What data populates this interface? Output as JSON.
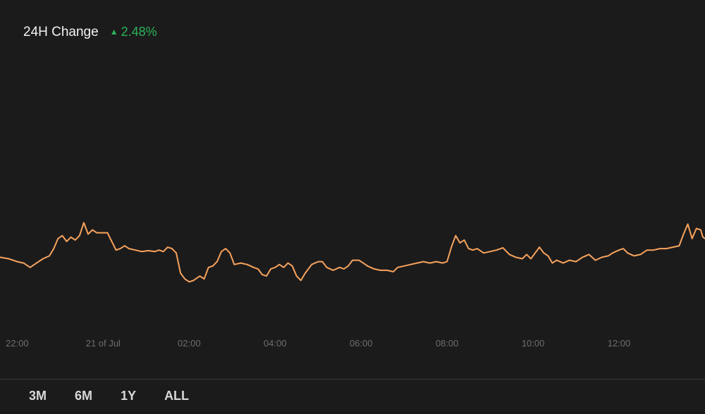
{
  "header": {
    "title": "24H Change",
    "change_icon": "triangle-up-icon",
    "change_value": "2.48%",
    "change_color": "#29b35a"
  },
  "range_buttons": [
    "3M",
    "6M",
    "1Y",
    "ALL"
  ],
  "chart_data": {
    "type": "line",
    "line_color": "#f7a35c",
    "background": "#1c1b1c",
    "tick_color": "#6e6e6e",
    "grid": false,
    "x_ticks": [
      "22:00",
      "21 of Jul",
      "02:00",
      "04:00",
      "06:00",
      "08:00",
      "10:00",
      "12:00"
    ],
    "x_tick_hours": [
      22,
      24,
      26,
      28,
      30,
      32,
      34,
      36
    ],
    "x_range": [
      21.6,
      38.0
    ],
    "y_range": [
      0,
      100
    ],
    "series": [
      {
        "points": [
          [
            21.6,
            25.5
          ],
          [
            21.8,
            25.0
          ],
          [
            22.0,
            24.0
          ],
          [
            22.15,
            23.5
          ],
          [
            22.3,
            22.0
          ],
          [
            22.45,
            23.5
          ],
          [
            22.6,
            25.0
          ],
          [
            22.75,
            26.0
          ],
          [
            22.85,
            28.5
          ],
          [
            22.95,
            32.0
          ],
          [
            23.05,
            33.0
          ],
          [
            23.15,
            31.0
          ],
          [
            23.25,
            32.5
          ],
          [
            23.35,
            31.5
          ],
          [
            23.45,
            33.0
          ],
          [
            23.55,
            37.5
          ],
          [
            23.65,
            33.5
          ],
          [
            23.75,
            35.0
          ],
          [
            23.85,
            34.0
          ],
          [
            24.0,
            34.0
          ],
          [
            24.1,
            34.0
          ],
          [
            24.2,
            31.0
          ],
          [
            24.3,
            28.0
          ],
          [
            24.4,
            28.5
          ],
          [
            24.5,
            29.5
          ],
          [
            24.6,
            28.5
          ],
          [
            24.75,
            28.0
          ],
          [
            24.9,
            27.5
          ],
          [
            25.05,
            27.8
          ],
          [
            25.2,
            27.5
          ],
          [
            25.3,
            28.0
          ],
          [
            25.4,
            27.5
          ],
          [
            25.5,
            29.0
          ],
          [
            25.6,
            28.5
          ],
          [
            25.7,
            27.0
          ],
          [
            25.8,
            20.0
          ],
          [
            25.9,
            18.0
          ],
          [
            26.0,
            17.0
          ],
          [
            26.1,
            17.5
          ],
          [
            26.25,
            19.0
          ],
          [
            26.35,
            18.0
          ],
          [
            26.45,
            22.0
          ],
          [
            26.55,
            22.5
          ],
          [
            26.65,
            24.0
          ],
          [
            26.75,
            27.5
          ],
          [
            26.85,
            28.5
          ],
          [
            26.95,
            27.0
          ],
          [
            27.05,
            23.0
          ],
          [
            27.2,
            23.5
          ],
          [
            27.35,
            23.0
          ],
          [
            27.5,
            22.0
          ],
          [
            27.6,
            21.5
          ],
          [
            27.7,
            19.5
          ],
          [
            27.8,
            19.0
          ],
          [
            27.9,
            21.5
          ],
          [
            28.0,
            22.0
          ],
          [
            28.1,
            23.0
          ],
          [
            28.2,
            22.0
          ],
          [
            28.3,
            23.5
          ],
          [
            28.4,
            22.5
          ],
          [
            28.5,
            19.0
          ],
          [
            28.6,
            17.5
          ],
          [
            28.7,
            20.0
          ],
          [
            28.85,
            23.0
          ],
          [
            29.0,
            24.0
          ],
          [
            29.1,
            24.0
          ],
          [
            29.2,
            22.0
          ],
          [
            29.35,
            21.0
          ],
          [
            29.5,
            22.0
          ],
          [
            29.6,
            21.5
          ],
          [
            29.7,
            22.5
          ],
          [
            29.8,
            24.5
          ],
          [
            29.95,
            24.5
          ],
          [
            30.05,
            23.5
          ],
          [
            30.15,
            22.5
          ],
          [
            30.3,
            21.5
          ],
          [
            30.45,
            21.0
          ],
          [
            30.6,
            21.0
          ],
          [
            30.75,
            20.5
          ],
          [
            30.85,
            22.0
          ],
          [
            31.0,
            22.5
          ],
          [
            31.15,
            23.0
          ],
          [
            31.3,
            23.5
          ],
          [
            31.45,
            24.0
          ],
          [
            31.6,
            23.5
          ],
          [
            31.75,
            24.0
          ],
          [
            31.9,
            23.5
          ],
          [
            32.0,
            24.0
          ],
          [
            32.1,
            29.0
          ],
          [
            32.2,
            33.0
          ],
          [
            32.3,
            30.5
          ],
          [
            32.4,
            31.5
          ],
          [
            32.5,
            28.5
          ],
          [
            32.6,
            28.0
          ],
          [
            32.7,
            28.5
          ],
          [
            32.85,
            27.0
          ],
          [
            33.0,
            27.5
          ],
          [
            33.15,
            28.0
          ],
          [
            33.3,
            28.8
          ],
          [
            33.45,
            26.5
          ],
          [
            33.6,
            25.5
          ],
          [
            33.75,
            25.0
          ],
          [
            33.85,
            26.5
          ],
          [
            33.95,
            25.0
          ],
          [
            34.05,
            27.0
          ],
          [
            34.15,
            29.0
          ],
          [
            34.25,
            27.0
          ],
          [
            34.35,
            26.0
          ],
          [
            34.45,
            23.5
          ],
          [
            34.55,
            24.5
          ],
          [
            34.7,
            23.5
          ],
          [
            34.85,
            24.5
          ],
          [
            35.0,
            24.0
          ],
          [
            35.15,
            25.5
          ],
          [
            35.3,
            26.5
          ],
          [
            35.45,
            24.5
          ],
          [
            35.6,
            25.5
          ],
          [
            35.75,
            26.0
          ],
          [
            35.85,
            27.0
          ],
          [
            36.0,
            28.0
          ],
          [
            36.1,
            28.5
          ],
          [
            36.2,
            27.0
          ],
          [
            36.35,
            26.0
          ],
          [
            36.5,
            26.5
          ],
          [
            36.65,
            28.0
          ],
          [
            36.8,
            28.0
          ],
          [
            36.95,
            28.5
          ],
          [
            37.1,
            28.5
          ],
          [
            37.25,
            29.0
          ],
          [
            37.4,
            29.5
          ],
          [
            37.5,
            33.5
          ],
          [
            37.6,
            37.0
          ],
          [
            37.7,
            32.0
          ],
          [
            37.8,
            35.5
          ],
          [
            37.9,
            35.0
          ],
          [
            37.95,
            32.5
          ],
          [
            38.0,
            32.0
          ]
        ]
      }
    ]
  }
}
